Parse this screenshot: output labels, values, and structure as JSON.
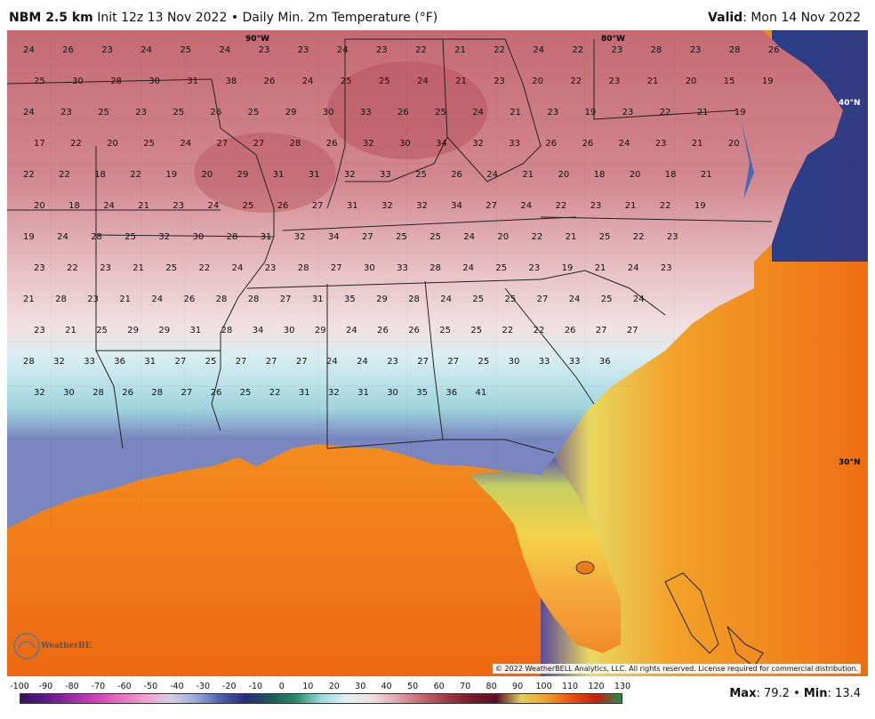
{
  "header": {
    "model": "NBM 2.5 km",
    "init": "Init 12z 13 Nov 2022",
    "sep": "•",
    "product": "Daily Min. 2m Temperature (°F)",
    "valid_label": "Valid",
    "valid_value": ": Mon 14 Nov 2022"
  },
  "map": {
    "lon_labels": [
      "90°W",
      "80°W"
    ],
    "lat_labels": [
      "40°N",
      "30°N"
    ],
    "copyright": "© 2022 WeatherBELL Analytics, LLC. All rights reserved. License required for commercial distribution.",
    "logo_text": "WeatherBELL",
    "station_values": [
      "24",
      "26",
      "23",
      "24",
      "25",
      "24",
      "23",
      "23",
      "24",
      "23",
      "22",
      "21",
      "22",
      "24",
      "22",
      "23",
      "28",
      "23",
      "28",
      "26",
      "25",
      "30",
      "28",
      "30",
      "31",
      "38",
      "26",
      "24",
      "25",
      "25",
      "24",
      "21",
      "23",
      "20",
      "22",
      "23",
      "21",
      "20",
      "15",
      "19",
      "24",
      "23",
      "25",
      "23",
      "25",
      "26",
      "25",
      "29",
      "30",
      "33",
      "26",
      "25",
      "24",
      "21",
      "23",
      "19",
      "23",
      "22",
      "21",
      "19",
      "17",
      "22",
      "20",
      "25",
      "24",
      "27",
      "27",
      "28",
      "26",
      "32",
      "30",
      "34",
      "32",
      "33",
      "26",
      "26",
      "24",
      "23",
      "21",
      "20",
      "22",
      "22",
      "18",
      "22",
      "19",
      "20",
      "29",
      "31",
      "31",
      "32",
      "33",
      "25",
      "26",
      "24",
      "21",
      "20",
      "18",
      "20",
      "18",
      "21",
      "20",
      "18",
      "24",
      "21",
      "23",
      "24",
      "25",
      "26",
      "27",
      "31",
      "32",
      "32",
      "34",
      "27",
      "24",
      "22",
      "23",
      "21",
      "22",
      "19",
      "19",
      "24",
      "28",
      "25",
      "32",
      "30",
      "28",
      "31",
      "32",
      "34",
      "27",
      "25",
      "25",
      "24",
      "20",
      "22",
      "21",
      "25",
      "22",
      "23",
      "23",
      "22",
      "23",
      "21",
      "25",
      "22",
      "24",
      "23",
      "28",
      "27",
      "30",
      "33",
      "28",
      "24",
      "25",
      "23",
      "19",
      "21",
      "24",
      "23",
      "21",
      "28",
      "23",
      "21",
      "24",
      "26",
      "28",
      "28",
      "27",
      "31",
      "35",
      "29",
      "28",
      "24",
      "25",
      "25",
      "27",
      "24",
      "25",
      "24",
      "23",
      "21",
      "25",
      "29",
      "29",
      "31",
      "28",
      "34",
      "30",
      "29",
      "24",
      "26",
      "26",
      "25",
      "25",
      "22",
      "22",
      "26",
      "27",
      "27",
      "28",
      "32",
      "33",
      "36",
      "31",
      "27",
      "25",
      "27",
      "27",
      "27",
      "24",
      "24",
      "23",
      "27",
      "27",
      "25",
      "30",
      "33",
      "33",
      "36",
      "32",
      "30",
      "28",
      "26",
      "28",
      "27",
      "26",
      "25",
      "22",
      "31",
      "32",
      "31",
      "30",
      "35",
      "36",
      "41"
    ]
  },
  "legend": {
    "ticks": [
      "-100",
      "-90",
      "-80",
      "-70",
      "-60",
      "-50",
      "-40",
      "-30",
      "-20",
      "-10",
      "0",
      "10",
      "20",
      "30",
      "40",
      "50",
      "60",
      "70",
      "80",
      "90",
      "100",
      "110",
      "120",
      "130"
    ],
    "stats_max_label": "Max",
    "stats_max_value": ": 79.2",
    "stats_sep": " • ",
    "stats_min_label": "Min",
    "stats_min_value": ": 13.4"
  }
}
